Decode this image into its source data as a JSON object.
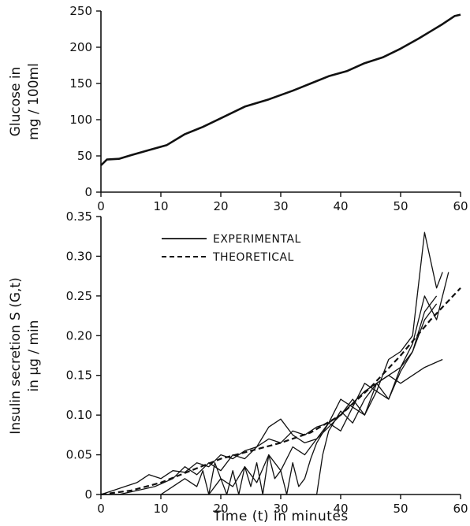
{
  "chart_data": [
    {
      "type": "line",
      "xlabel": "",
      "ylabel_lines": [
        "Glucose in",
        "mg / 100ml"
      ],
      "xlim": [
        0,
        60
      ],
      "ylim": [
        0,
        250
      ],
      "x_ticks": [
        "0",
        "10",
        "20",
        "30",
        "40",
        "50",
        "60"
      ],
      "y_ticks": [
        "0",
        "50",
        "100",
        "150",
        "200",
        "250"
      ],
      "grid": false,
      "series": [
        {
          "style": "solid",
          "x": [
            0,
            1,
            3,
            5,
            8,
            11,
            14,
            17,
            20,
            24,
            28,
            32,
            35,
            38,
            41,
            44,
            47,
            50,
            53,
            55,
            57,
            59,
            60
          ],
          "y": [
            37,
            45,
            46,
            51,
            58,
            65,
            80,
            90,
            102,
            118,
            128,
            140,
            150,
            160,
            167,
            178,
            186,
            198,
            212,
            222,
            232,
            243,
            245
          ]
        }
      ]
    },
    {
      "type": "line",
      "xlabel": "Time (t)  in minutes",
      "ylabel_lines": [
        "Insulin secretion S (G,t)",
        "in μg / min"
      ],
      "xlim": [
        0,
        60
      ],
      "ylim": [
        0,
        0.35
      ],
      "x_ticks": [
        "0",
        "10",
        "20",
        "30",
        "40",
        "50",
        "60"
      ],
      "y_ticks": [
        "0",
        "0.05",
        "0.10",
        "0.15",
        "0.20",
        "0.25",
        "0.30",
        "0.35"
      ],
      "grid": false,
      "legend": {
        "position": "top-left",
        "entries": [
          {
            "label": "EXPERIMENTAL",
            "style": "solid"
          },
          {
            "label": "THEORETICAL",
            "style": "dashed"
          }
        ]
      },
      "series": [
        {
          "style": "dashed",
          "x": [
            0,
            5,
            10,
            15,
            20,
            25,
            30,
            35,
            40,
            45,
            50,
            55,
            60
          ],
          "y": [
            0,
            0.005,
            0.015,
            0.03,
            0.045,
            0.055,
            0.065,
            0.078,
            0.1,
            0.135,
            0.175,
            0.22,
            0.26
          ]
        },
        {
          "style": "solid",
          "x": [
            0,
            2,
            4,
            6,
            8,
            10,
            12,
            14,
            16,
            18,
            20,
            22,
            24,
            26,
            28,
            30,
            32,
            34,
            36,
            38,
            40,
            42,
            44,
            46,
            48,
            50,
            52,
            54,
            56
          ],
          "y": [
            0,
            0.005,
            0.01,
            0.015,
            0.025,
            0.02,
            0.03,
            0.028,
            0.04,
            0.035,
            0.05,
            0.045,
            0.055,
            0.06,
            0.07,
            0.065,
            0.08,
            0.075,
            0.085,
            0.09,
            0.1,
            0.115,
            0.13,
            0.14,
            0.15,
            0.16,
            0.18,
            0.22,
            0.24
          ]
        },
        {
          "style": "solid",
          "x": [
            0,
            3,
            6,
            9,
            12,
            14,
            16,
            18,
            20,
            22,
            24,
            26,
            28,
            30,
            32,
            34,
            36,
            38,
            40,
            42,
            44,
            46,
            48,
            50,
            52,
            54,
            56,
            57
          ],
          "y": [
            0,
            0,
            0.005,
            0.01,
            0.02,
            0.035,
            0.025,
            0.04,
            0.03,
            0.05,
            0.045,
            0.06,
            0.085,
            0.095,
            0.075,
            0.065,
            0.07,
            0.09,
            0.12,
            0.11,
            0.14,
            0.13,
            0.17,
            0.18,
            0.2,
            0.33,
            0.26,
            0.28
          ]
        },
        {
          "style": "solid",
          "x": [
            10,
            12,
            14,
            16,
            17,
            18,
            19,
            20,
            22,
            24,
            26,
            28,
            30,
            32,
            34,
            36,
            38,
            40,
            42,
            44,
            46,
            48,
            50,
            52,
            54,
            56,
            58
          ],
          "y": [
            0,
            0.01,
            0.02,
            0.01,
            0.03,
            0,
            0.04,
            0.02,
            0.01,
            0.035,
            0.015,
            0.05,
            0.03,
            0.06,
            0.05,
            0.07,
            0.085,
            0.1,
            0.12,
            0.1,
            0.14,
            0.12,
            0.16,
            0.19,
            0.25,
            0.22,
            0.28
          ]
        },
        {
          "style": "solid",
          "x": [
            18,
            20,
            21,
            22,
            23,
            24,
            25,
            26,
            27,
            28,
            29,
            30,
            31,
            32,
            33,
            34,
            35,
            36,
            38,
            40,
            42,
            44,
            46,
            48,
            50,
            52,
            54,
            56
          ],
          "y": [
            0,
            0.02,
            0,
            0.03,
            0,
            0.035,
            0.01,
            0.04,
            0,
            0.05,
            0.02,
            0.03,
            0,
            0.04,
            0.01,
            0.02,
            0.045,
            0.065,
            0.09,
            0.08,
            0.11,
            0.1,
            0.13,
            0.12,
            0.155,
            0.18,
            0.23,
            0.25
          ]
        },
        {
          "style": "solid",
          "x": [
            0,
            20,
            26,
            30,
            34,
            35,
            36,
            37,
            38,
            40,
            42,
            44,
            46,
            48,
            50,
            52,
            54,
            57
          ],
          "y": [
            0,
            0,
            0,
            0,
            0,
            0,
            0,
            0.05,
            0.08,
            0.105,
            0.09,
            0.12,
            0.14,
            0.15,
            0.14,
            0.15,
            0.16,
            0.17
          ]
        }
      ]
    }
  ]
}
